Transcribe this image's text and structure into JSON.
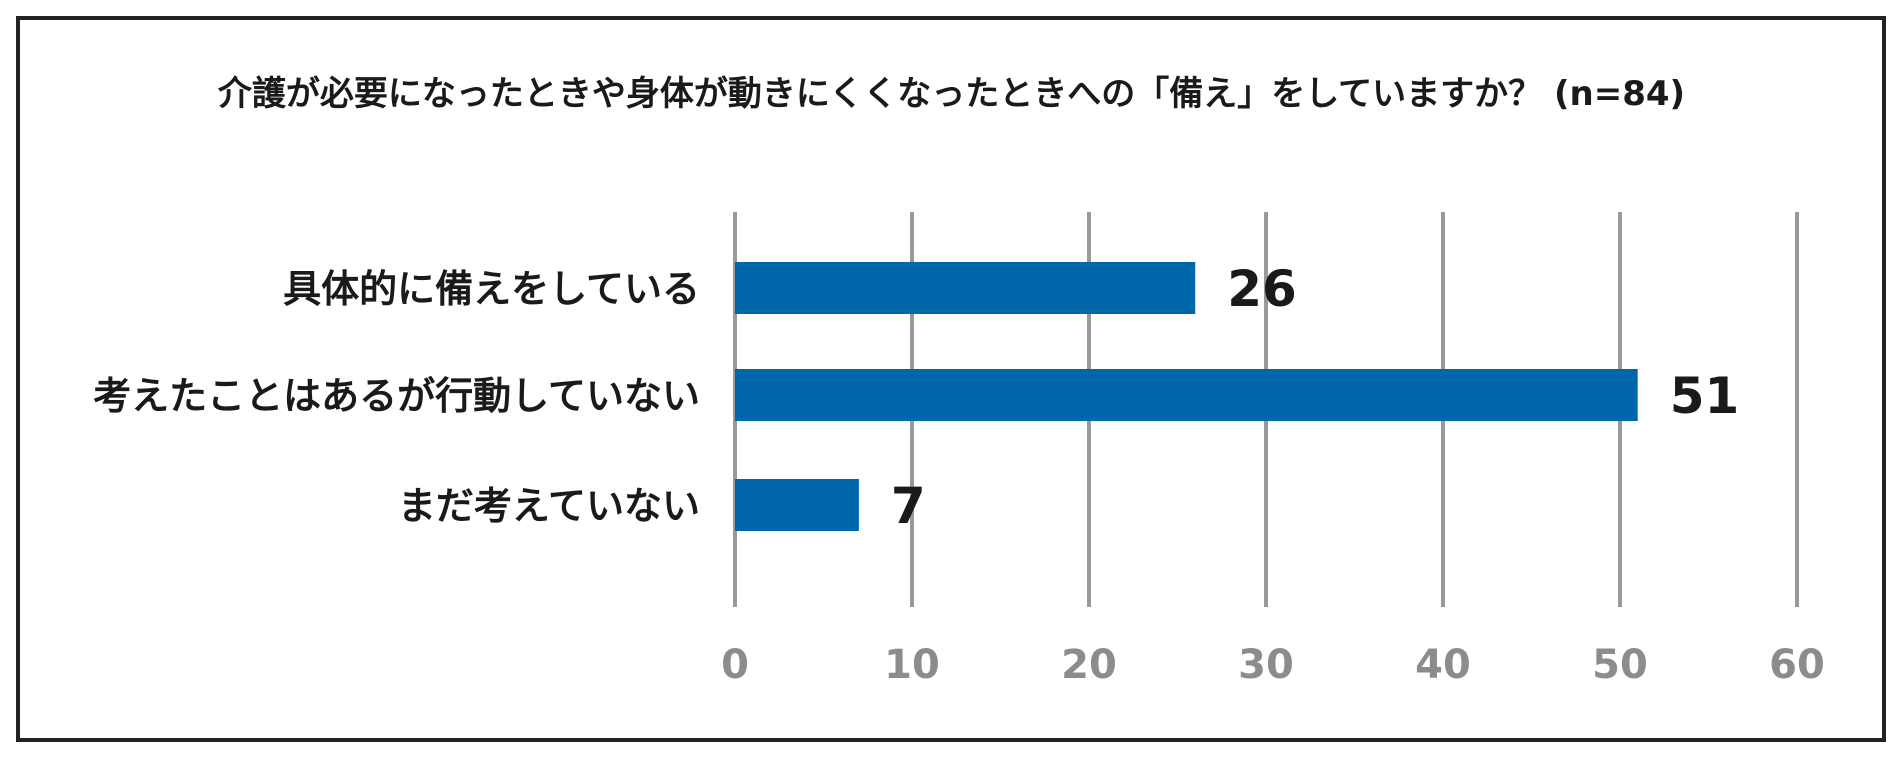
{
  "chart_data": {
    "type": "bar",
    "orientation": "horizontal",
    "title": "介護が必要になったときや身体が動きにくくなったときへの「備え」をしていますか？ (n=84)",
    "categories": [
      "具体的に備えをしている",
      "考えたことはあるが行動していない",
      "まだ考えていない"
    ],
    "values": [
      26,
      51,
      7
    ],
    "xlim": [
      0,
      60
    ],
    "xticks": [
      0,
      10,
      20,
      30,
      40,
      50,
      60
    ],
    "xlabel": "",
    "ylabel": "",
    "grid": "vertical",
    "legend": "none",
    "bar_color": "#0067ad",
    "grid_color": "#999999",
    "tick_label_color": "#8c8c8c"
  }
}
